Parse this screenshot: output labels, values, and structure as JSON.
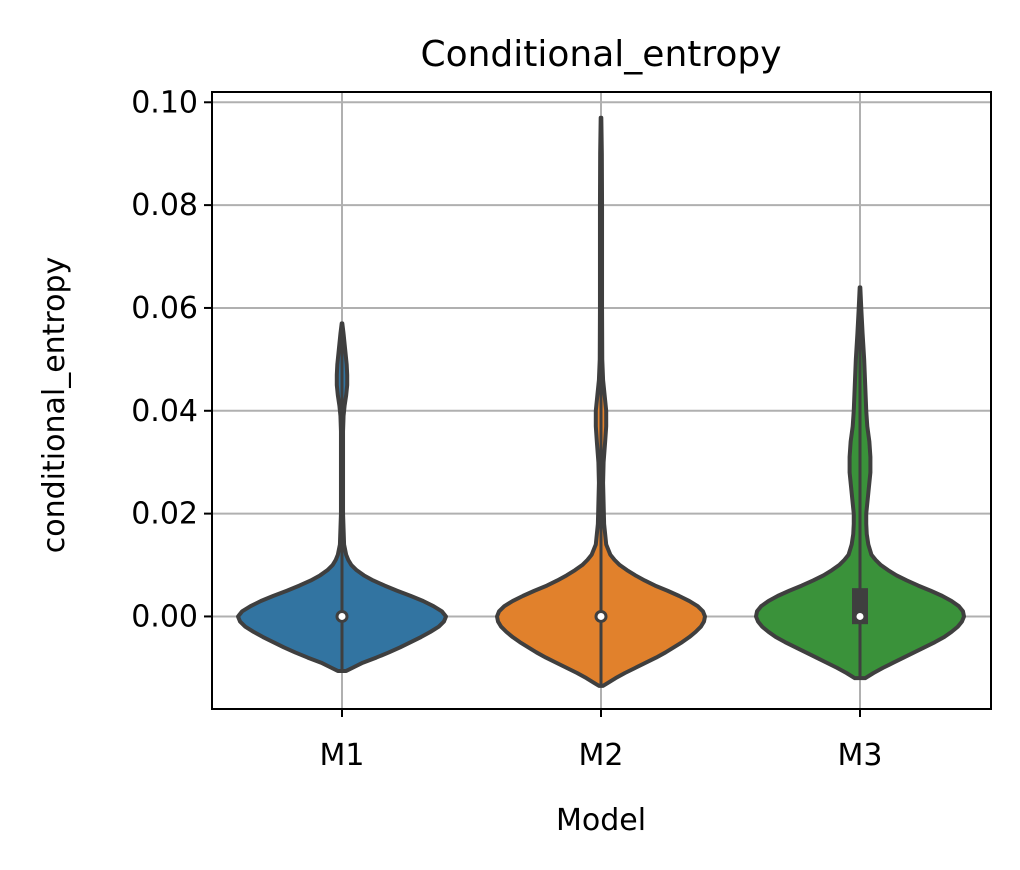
{
  "chart_data": {
    "type": "violin",
    "title": "Conditional_entropy",
    "xlabel": "Model",
    "ylabel": "conditional_entropy",
    "categories": [
      "M1",
      "M2",
      "M3"
    ],
    "ylim": [
      -0.018,
      0.102
    ],
    "yticks": [
      0.0,
      0.02,
      0.04,
      0.06,
      0.08,
      0.1
    ],
    "ytick_labels": [
      "0.00",
      "0.02",
      "0.04",
      "0.06",
      "0.08",
      "0.10"
    ],
    "grid": true,
    "legend": false,
    "colors": [
      "#3274a1",
      "#e1812c",
      "#3a923a"
    ],
    "outline_color": "#3f3f3f",
    "series": [
      {
        "category": "M1",
        "median": 0.0,
        "q1": 0.0,
        "q3": 0.0,
        "density_y": [
          -0.0106,
          -0.01,
          -0.009,
          -0.008,
          -0.007,
          -0.006,
          -0.005,
          -0.004,
          -0.003,
          -0.002,
          -0.001,
          0.0,
          0.001,
          0.002,
          0.003,
          0.004,
          0.005,
          0.006,
          0.007,
          0.008,
          0.009,
          0.01,
          0.011,
          0.012,
          0.014,
          0.02,
          0.03,
          0.036,
          0.039,
          0.041,
          0.043,
          0.045,
          0.047,
          0.049,
          0.052,
          0.055,
          0.057
        ],
        "density_w": [
          0.04,
          0.1,
          0.2,
          0.33,
          0.45,
          0.56,
          0.66,
          0.76,
          0.85,
          0.93,
          0.98,
          1.0,
          0.96,
          0.88,
          0.78,
          0.66,
          0.53,
          0.41,
          0.3,
          0.21,
          0.14,
          0.09,
          0.06,
          0.04,
          0.02,
          0.01,
          0.01,
          0.01,
          0.015,
          0.025,
          0.04,
          0.05,
          0.05,
          0.045,
          0.03,
          0.015,
          0.003
        ]
      },
      {
        "category": "M2",
        "median": 0.0,
        "q1": 0.0,
        "q3": 0.0,
        "density_y": [
          -0.0135,
          -0.013,
          -0.012,
          -0.011,
          -0.01,
          -0.009,
          -0.008,
          -0.007,
          -0.006,
          -0.005,
          -0.004,
          -0.003,
          -0.002,
          -0.001,
          0.0,
          0.001,
          0.002,
          0.003,
          0.004,
          0.005,
          0.006,
          0.007,
          0.008,
          0.009,
          0.01,
          0.011,
          0.012,
          0.014,
          0.018,
          0.022,
          0.026,
          0.03,
          0.034,
          0.037,
          0.04,
          0.043,
          0.046,
          0.05,
          0.06,
          0.07,
          0.08,
          0.09,
          0.097
        ],
        "density_w": [
          0.02,
          0.06,
          0.14,
          0.23,
          0.33,
          0.43,
          0.53,
          0.62,
          0.7,
          0.78,
          0.85,
          0.91,
          0.96,
          0.99,
          1.0,
          0.98,
          0.93,
          0.85,
          0.75,
          0.64,
          0.52,
          0.42,
          0.33,
          0.25,
          0.18,
          0.13,
          0.09,
          0.05,
          0.03,
          0.025,
          0.02,
          0.025,
          0.04,
          0.05,
          0.05,
          0.035,
          0.02,
          0.012,
          0.01,
          0.01,
          0.01,
          0.008,
          0.003
        ]
      },
      {
        "category": "M3",
        "median": 0.0,
        "q1": -0.0015,
        "q3": 0.0055,
        "density_y": [
          -0.012,
          -0.011,
          -0.01,
          -0.009,
          -0.008,
          -0.007,
          -0.006,
          -0.005,
          -0.004,
          -0.003,
          -0.002,
          -0.001,
          0.0,
          0.001,
          0.002,
          0.003,
          0.004,
          0.005,
          0.006,
          0.007,
          0.008,
          0.009,
          0.01,
          0.011,
          0.012,
          0.014,
          0.016,
          0.018,
          0.02,
          0.024,
          0.028,
          0.031,
          0.034,
          0.037,
          0.04,
          0.045,
          0.05,
          0.055,
          0.06,
          0.064
        ],
        "density_w": [
          0.05,
          0.13,
          0.22,
          0.32,
          0.42,
          0.52,
          0.62,
          0.72,
          0.81,
          0.88,
          0.94,
          0.98,
          1.0,
          0.99,
          0.95,
          0.88,
          0.79,
          0.68,
          0.56,
          0.45,
          0.35,
          0.27,
          0.2,
          0.15,
          0.11,
          0.08,
          0.065,
          0.06,
          0.06,
          0.08,
          0.1,
          0.1,
          0.09,
          0.07,
          0.06,
          0.05,
          0.04,
          0.025,
          0.012,
          0.003
        ]
      }
    ]
  }
}
